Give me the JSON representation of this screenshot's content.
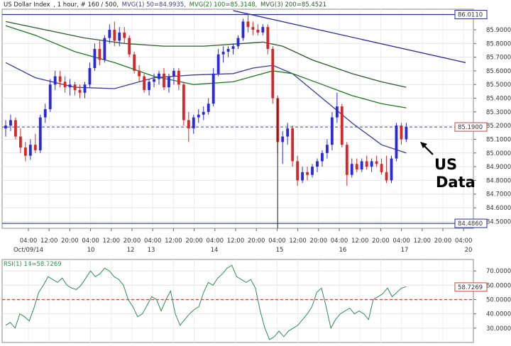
{
  "header": {
    "instrument": "US Dollar Index",
    "params": ", 1 hour, # 160 / 500,",
    "mvg1_label": "MVG(1) 50=84.9935,",
    "mvg2_label": "MVG(2) 100=85.3148,",
    "mvg3_label": "MVG(3) 200=85.4521",
    "colors": {
      "mvg1": "#3a3a9a",
      "mvg2": "#1a7a1a",
      "mvg3": "#2a5a2a",
      "text": "#222222"
    }
  },
  "annotation": {
    "line1": "US",
    "line2": "Data"
  },
  "price_tags": {
    "high": "86.0110",
    "current": "85.1900",
    "low": "84.4860"
  },
  "rsi_header": "RSI(1) 14=58.7269",
  "rsi_tag": "58.7269",
  "time_labels": [
    "04:00",
    "12:00",
    "20:00",
    "04:00",
    "12:00",
    "20:00",
    "04:00",
    "12:00",
    "20:00",
    "04:00",
    "12:00",
    "20:00",
    "04:00",
    "12:00",
    "20:00",
    "04:00",
    "12:00",
    "20:00",
    "04:00",
    "12:00",
    "20:00",
    "04:00"
  ],
  "date_labels": [
    "Oct/09/14",
    "10",
    "12",
    "13",
    "14",
    "15",
    "16",
    "17",
    "20"
  ],
  "chart_data": [
    {
      "type": "candlestick",
      "title": "US Dollar Index , 1 hour",
      "ylim": [
        84.45,
        86.05
      ],
      "y_ticks": [
        "85.9000",
        "85.8000",
        "85.7000",
        "85.6000",
        "85.5000",
        "85.4000",
        "85.3000",
        "85.2000",
        "85.1000",
        "85.0000",
        "84.9000",
        "84.8000",
        "84.7000",
        "84.6000",
        "84.5000"
      ],
      "horizontal_lines": {
        "high": 86.011,
        "current": 85.19,
        "low": 84.486
      },
      "candles": [
        [
          85.18,
          85.24,
          85.12,
          85.2
        ],
        [
          85.2,
          85.28,
          85.16,
          85.24
        ],
        [
          85.24,
          85.26,
          85.1,
          85.12
        ],
        [
          85.12,
          85.18,
          85.0,
          85.04
        ],
        [
          85.04,
          85.08,
          84.94,
          84.98
        ],
        [
          84.98,
          85.1,
          84.95,
          85.06
        ],
        [
          85.06,
          85.14,
          85.0,
          85.02
        ],
        [
          85.02,
          85.28,
          85.0,
          85.26
        ],
        [
          85.26,
          85.36,
          85.22,
          85.32
        ],
        [
          85.32,
          85.54,
          85.3,
          85.5
        ],
        [
          85.5,
          85.6,
          85.46,
          85.56
        ],
        [
          85.56,
          85.6,
          85.48,
          85.52
        ],
        [
          85.52,
          85.56,
          85.44,
          85.48
        ],
        [
          85.48,
          85.54,
          85.42,
          85.5
        ],
        [
          85.5,
          85.52,
          85.42,
          85.46
        ],
        [
          85.46,
          85.5,
          85.4,
          85.44
        ],
        [
          85.44,
          85.52,
          85.4,
          85.5
        ],
        [
          85.5,
          85.66,
          85.48,
          85.62
        ],
        [
          85.62,
          85.8,
          85.6,
          85.76
        ],
        [
          85.76,
          85.82,
          85.64,
          85.68
        ],
        [
          85.68,
          85.86,
          85.66,
          85.84
        ],
        [
          85.84,
          85.94,
          85.8,
          85.9
        ],
        [
          85.9,
          85.96,
          85.78,
          85.82
        ],
        [
          85.82,
          85.92,
          85.78,
          85.88
        ],
        [
          85.88,
          85.92,
          85.8,
          85.84
        ],
        [
          85.84,
          85.86,
          85.7,
          85.72
        ],
        [
          85.72,
          85.74,
          85.58,
          85.6
        ],
        [
          85.6,
          85.64,
          85.52,
          85.56
        ],
        [
          85.56,
          85.58,
          85.44,
          85.46
        ],
        [
          85.46,
          85.54,
          85.42,
          85.52
        ],
        [
          85.52,
          85.58,
          85.48,
          85.54
        ],
        [
          85.54,
          85.6,
          85.5,
          85.58
        ],
        [
          85.58,
          85.62,
          85.46,
          85.48
        ],
        [
          85.48,
          85.58,
          85.44,
          85.56
        ],
        [
          85.56,
          85.62,
          85.5,
          85.6
        ],
        [
          85.6,
          85.62,
          85.46,
          85.5
        ],
        [
          85.5,
          85.52,
          85.2,
          85.24
        ],
        [
          85.24,
          85.3,
          85.08,
          85.18
        ],
        [
          85.18,
          85.28,
          85.14,
          85.26
        ],
        [
          85.26,
          85.32,
          85.22,
          85.28
        ],
        [
          85.28,
          85.34,
          85.24,
          85.3
        ],
        [
          85.3,
          85.4,
          85.28,
          85.36
        ],
        [
          85.36,
          85.62,
          85.34,
          85.58
        ],
        [
          85.58,
          85.76,
          85.56,
          85.72
        ],
        [
          85.72,
          85.78,
          85.66,
          85.74
        ],
        [
          85.74,
          85.78,
          85.7,
          85.76
        ],
        [
          85.76,
          85.8,
          85.72,
          85.78
        ],
        [
          85.78,
          85.86,
          85.76,
          85.84
        ],
        [
          85.84,
          85.98,
          85.82,
          85.96
        ],
        [
          85.96,
          86.02,
          85.88,
          85.92
        ],
        [
          85.92,
          85.96,
          85.86,
          85.9
        ],
        [
          85.9,
          85.94,
          85.86,
          85.88
        ],
        [
          85.88,
          85.94,
          85.86,
          85.92
        ],
        [
          85.92,
          85.94,
          85.72,
          85.76
        ],
        [
          85.76,
          85.78,
          85.36,
          85.4
        ],
        [
          85.4,
          85.42,
          85.0,
          85.08
        ],
        [
          85.08,
          85.16,
          84.92,
          85.12
        ],
        [
          85.12,
          85.22,
          85.06,
          85.18
        ],
        [
          85.18,
          85.2,
          84.9,
          84.94
        ],
        [
          84.94,
          84.98,
          84.76,
          84.8
        ],
        [
          84.8,
          84.9,
          84.78,
          84.86
        ],
        [
          84.86,
          84.9,
          84.8,
          84.84
        ],
        [
          84.84,
          84.92,
          84.82,
          84.9
        ],
        [
          84.9,
          84.96,
          84.86,
          84.94
        ],
        [
          84.94,
          85.02,
          84.9,
          85.0
        ],
        [
          85.0,
          85.1,
          84.96,
          85.06
        ],
        [
          85.06,
          85.3,
          85.02,
          85.26
        ],
        [
          85.26,
          85.44,
          85.22,
          85.34
        ],
        [
          85.34,
          85.36,
          85.04,
          85.06
        ],
        [
          85.06,
          85.08,
          84.76,
          84.84
        ],
        [
          84.84,
          84.96,
          84.82,
          84.92
        ],
        [
          84.92,
          84.96,
          84.86,
          84.88
        ],
        [
          84.88,
          84.96,
          84.86,
          84.94
        ],
        [
          84.94,
          84.98,
          84.88,
          84.9
        ],
        [
          84.9,
          84.96,
          84.86,
          84.94
        ],
        [
          84.94,
          84.98,
          84.9,
          84.92
        ],
        [
          84.92,
          84.96,
          84.84,
          84.86
        ],
        [
          84.86,
          84.98,
          84.78,
          84.8
        ],
        [
          84.8,
          84.98,
          84.78,
          84.96
        ],
        [
          84.96,
          85.22,
          84.94,
          85.2
        ],
        [
          85.2,
          85.22,
          85.06,
          85.1
        ],
        [
          85.1,
          85.22,
          85.08,
          85.19
        ]
      ],
      "series": [
        {
          "name": "MVG(1) 50",
          "color": "#3a3a9a",
          "points": [
            [
              0,
              85.66
            ],
            [
              6,
              85.55
            ],
            [
              14,
              85.48
            ],
            [
              22,
              85.47
            ],
            [
              30,
              85.55
            ],
            [
              38,
              85.57
            ],
            [
              46,
              85.58
            ],
            [
              50,
              85.62
            ],
            [
              54,
              85.64
            ],
            [
              58,
              85.58
            ],
            [
              64,
              85.4
            ],
            [
              70,
              85.22
            ],
            [
              76,
              85.06
            ],
            [
              81,
              85.0
            ]
          ]
        },
        {
          "name": "MVG(2) 100",
          "color": "#1a7a1a",
          "points": [
            [
              0,
              85.93
            ],
            [
              6,
              85.86
            ],
            [
              14,
              85.74
            ],
            [
              22,
              85.66
            ],
            [
              30,
              85.56
            ],
            [
              38,
              85.5
            ],
            [
              46,
              85.52
            ],
            [
              50,
              85.56
            ],
            [
              54,
              85.6
            ],
            [
              58,
              85.58
            ],
            [
              64,
              85.5
            ],
            [
              70,
              85.42
            ],
            [
              76,
              85.36
            ],
            [
              81,
              85.33
            ]
          ]
        },
        {
          "name": "MVG(3) 200",
          "color": "#2a5a2a",
          "points": [
            [
              0,
              85.96
            ],
            [
              8,
              85.9
            ],
            [
              16,
              85.84
            ],
            [
              24,
              85.8
            ],
            [
              32,
              85.78
            ],
            [
              40,
              85.78
            ],
            [
              48,
              85.8
            ],
            [
              52,
              85.81
            ],
            [
              56,
              85.78
            ],
            [
              62,
              85.68
            ],
            [
              70,
              85.58
            ],
            [
              76,
              85.52
            ],
            [
              81,
              85.48
            ]
          ]
        }
      ],
      "trendline": {
        "name": "trendline",
        "color": "#2b2b9e",
        "points": [
          [
            46,
            86.04
          ],
          [
            93,
            85.66
          ]
        ]
      },
      "x_range": [
        0,
        94
      ]
    },
    {
      "type": "line",
      "title": "RSI(1) 14",
      "ylim": [
        20,
        78
      ],
      "y_ticks": [
        "70.0000",
        "60.0000",
        "50.0000",
        "40.0000",
        "30.0000"
      ],
      "reference_line": 50,
      "series": [
        {
          "name": "RSI(1) 14",
          "color": "#2e8b57",
          "values": [
            32,
            34,
            30,
            40,
            38,
            35,
            44,
            55,
            60,
            66,
            64,
            62,
            65,
            60,
            58,
            57,
            60,
            65,
            70,
            66,
            68,
            72,
            70,
            66,
            64,
            60,
            50,
            45,
            38,
            40,
            46,
            52,
            50,
            42,
            50,
            56,
            40,
            32,
            36,
            40,
            43,
            45,
            55,
            62,
            60,
            65,
            68,
            72,
            74,
            66,
            64,
            62,
            64,
            58,
            42,
            30,
            22,
            24,
            28,
            24,
            28,
            30,
            32,
            36,
            40,
            45,
            55,
            58,
            45,
            30,
            36,
            40,
            42,
            44,
            40,
            42,
            40,
            36,
            50,
            52,
            54,
            58,
            52,
            55,
            58,
            59
          ]
        }
      ]
    }
  ]
}
